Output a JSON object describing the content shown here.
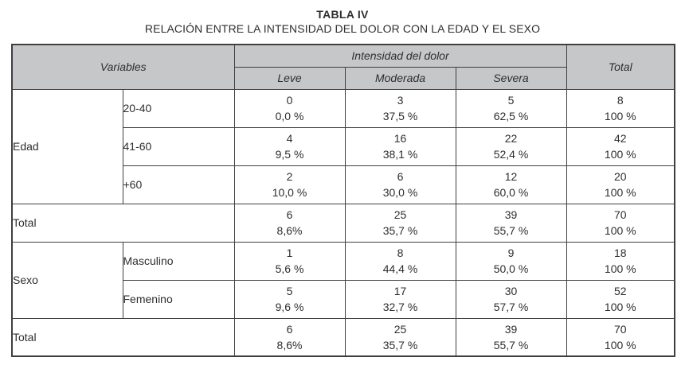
{
  "title": "TABLA IV",
  "subtitle": "RELACIÓN ENTRE LA INTENSIDAD DEL DOLOR CON LA EDAD Y EL SEXO",
  "colors": {
    "header_bg": "#c6c7c9",
    "border": "#3f3f41",
    "text": "#2e2e30",
    "background": "#ffffff"
  },
  "table": {
    "headers": {
      "variables": "Variables",
      "intensity_group": "Intensidad del dolor",
      "leve": "Leve",
      "moderada": "Moderada",
      "severa": "Severa",
      "total": "Total"
    },
    "sections": [
      {
        "group": "Edad",
        "rows": [
          {
            "label": "20-40",
            "cells": [
              [
                "0",
                "0,0 %"
              ],
              [
                "3",
                "37,5 %"
              ],
              [
                "5",
                "62,5 %"
              ],
              [
                "8",
                "100 %"
              ]
            ]
          },
          {
            "label": "41-60",
            "cells": [
              [
                "4",
                "9,5 %"
              ],
              [
                "16",
                "38,1 %"
              ],
              [
                "22",
                "52,4 %"
              ],
              [
                "42",
                "100 %"
              ]
            ]
          },
          {
            "label": "+60",
            "cells": [
              [
                "2",
                "10,0 %"
              ],
              [
                "6",
                "30,0 %"
              ],
              [
                "12",
                "60,0 %"
              ],
              [
                "20",
                "100 %"
              ]
            ]
          }
        ],
        "total_row": {
          "label": "Total",
          "cells": [
            [
              "6",
              "8,6%"
            ],
            [
              "25",
              "35,7 %"
            ],
            [
              "39",
              "55,7 %"
            ],
            [
              "70",
              "100 %"
            ]
          ]
        }
      },
      {
        "group": "Sexo",
        "rows": [
          {
            "label": "Masculino",
            "cells": [
              [
                "1",
                "5,6 %"
              ],
              [
                "8",
                "44,4 %"
              ],
              [
                "9",
                "50,0 %"
              ],
              [
                "18",
                "100 %"
              ]
            ]
          },
          {
            "label": "Femenino",
            "cells": [
              [
                "5",
                "9,6 %"
              ],
              [
                "17",
                "32,7 %"
              ],
              [
                "30",
                "57,7 %"
              ],
              [
                "52",
                "100 %"
              ]
            ]
          }
        ],
        "total_row": {
          "label": "Total",
          "cells": [
            [
              "6",
              "8,6%"
            ],
            [
              "25",
              "35,7 %"
            ],
            [
              "39",
              "55,7 %"
            ],
            [
              "70",
              "100 %"
            ]
          ]
        }
      }
    ]
  },
  "chart_data": {
    "type": "table",
    "title": "TABLA IV — RELACIÓN ENTRE LA INTENSIDAD DEL DOLOR CON LA EDAD Y EL SEXO",
    "columns": [
      "Variables",
      "Leve",
      "Moderada",
      "Severa",
      "Total"
    ],
    "rows": [
      {
        "group": "Edad",
        "category": "20-40",
        "leve_n": 0,
        "leve_pct": "0,0 %",
        "moderada_n": 3,
        "moderada_pct": "37,5 %",
        "severa_n": 5,
        "severa_pct": "62,5 %",
        "total_n": 8,
        "total_pct": "100 %"
      },
      {
        "group": "Edad",
        "category": "41-60",
        "leve_n": 4,
        "leve_pct": "9,5 %",
        "moderada_n": 16,
        "moderada_pct": "38,1 %",
        "severa_n": 22,
        "severa_pct": "52,4 %",
        "total_n": 42,
        "total_pct": "100 %"
      },
      {
        "group": "Edad",
        "category": "+60",
        "leve_n": 2,
        "leve_pct": "10,0 %",
        "moderada_n": 6,
        "moderada_pct": "30,0 %",
        "severa_n": 12,
        "severa_pct": "60,0 %",
        "total_n": 20,
        "total_pct": "100 %"
      },
      {
        "group": "Edad",
        "category": "Total",
        "leve_n": 6,
        "leve_pct": "8,6%",
        "moderada_n": 25,
        "moderada_pct": "35,7 %",
        "severa_n": 39,
        "severa_pct": "55,7 %",
        "total_n": 70,
        "total_pct": "100 %"
      },
      {
        "group": "Sexo",
        "category": "Masculino",
        "leve_n": 1,
        "leve_pct": "5,6 %",
        "moderada_n": 8,
        "moderada_pct": "44,4 %",
        "severa_n": 9,
        "severa_pct": "50,0 %",
        "total_n": 18,
        "total_pct": "100 %"
      },
      {
        "group": "Sexo",
        "category": "Femenino",
        "leve_n": 5,
        "leve_pct": "9,6 %",
        "moderada_n": 17,
        "moderada_pct": "32,7 %",
        "severa_n": 30,
        "severa_pct": "57,7 %",
        "total_n": 52,
        "total_pct": "100 %"
      },
      {
        "group": "Sexo",
        "category": "Total",
        "leve_n": 6,
        "leve_pct": "8,6%",
        "moderada_n": 25,
        "moderada_pct": "35,7 %",
        "severa_n": 39,
        "severa_pct": "55,7 %",
        "total_n": 70,
        "total_pct": "100 %"
      }
    ]
  }
}
